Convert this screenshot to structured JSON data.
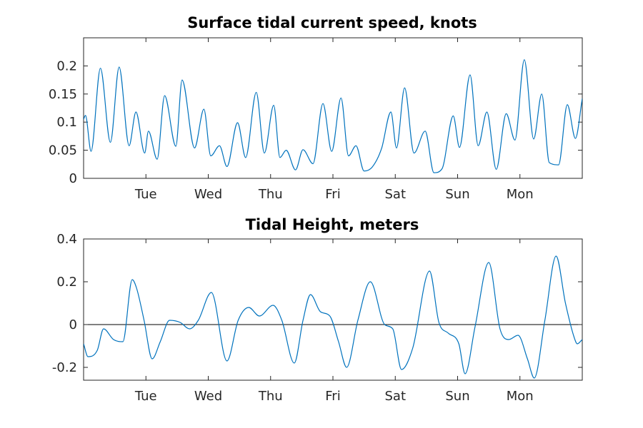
{
  "chart_data": [
    {
      "type": "line",
      "title": "Surface tidal current speed, knots",
      "xlabel": "",
      "ylabel": "",
      "xlim": [
        0,
        8
      ],
      "ylim": [
        0,
        0.25
      ],
      "yticks": [
        0,
        0.05,
        0.1,
        0.15,
        0.2
      ],
      "ytick_labels": [
        "0",
        "0.05",
        "0.1",
        "0.15",
        "0.2"
      ],
      "xticks": [
        1,
        2,
        3,
        4,
        5,
        6,
        7
      ],
      "xtick_labels": [
        "Tue",
        "Wed",
        "Thu",
        "Fri",
        "Sat",
        "Sun",
        "Mon"
      ],
      "zero_line": false,
      "grid": false,
      "series": [
        {
          "color": "#0072bd",
          "x": [
            0.0,
            0.03,
            0.12,
            0.27,
            0.43,
            0.57,
            0.73,
            0.84,
            0.98,
            1.04,
            1.18,
            1.3,
            1.48,
            1.58,
            1.78,
            1.93,
            2.04,
            2.18,
            2.3,
            2.47,
            2.6,
            2.77,
            2.9,
            3.05,
            3.15,
            3.25,
            3.4,
            3.52,
            3.68,
            3.84,
            3.98,
            4.13,
            4.25,
            4.37,
            4.5,
            4.63,
            4.78,
            4.93,
            5.02,
            5.15,
            5.3,
            5.48,
            5.62,
            5.75,
            5.93,
            6.03,
            6.2,
            6.33,
            6.47,
            6.62,
            6.78,
            6.92,
            7.07,
            7.22,
            7.35,
            7.47,
            7.62,
            7.76,
            7.89,
            8.0
          ],
          "y": [
            0.105,
            0.112,
            0.048,
            0.196,
            0.064,
            0.198,
            0.058,
            0.118,
            0.045,
            0.084,
            0.034,
            0.147,
            0.057,
            0.175,
            0.054,
            0.123,
            0.04,
            0.058,
            0.021,
            0.099,
            0.037,
            0.153,
            0.045,
            0.13,
            0.037,
            0.05,
            0.015,
            0.051,
            0.026,
            0.133,
            0.048,
            0.143,
            0.04,
            0.058,
            0.013,
            0.02,
            0.053,
            0.118,
            0.054,
            0.161,
            0.045,
            0.084,
            0.01,
            0.017,
            0.111,
            0.055,
            0.184,
            0.058,
            0.118,
            0.016,
            0.115,
            0.068,
            0.211,
            0.07,
            0.15,
            0.028,
            0.024,
            0.131,
            0.071,
            0.142
          ]
        }
      ]
    },
    {
      "type": "line",
      "title": "Tidal Height, meters",
      "xlabel": "",
      "ylabel": "",
      "xlim": [
        0,
        8
      ],
      "ylim": [
        -0.26,
        0.4
      ],
      "yticks": [
        -0.2,
        0,
        0.2,
        0.4
      ],
      "ytick_labels": [
        "-0.2",
        "0",
        "0.2",
        "0.4"
      ],
      "xticks": [
        1,
        2,
        3,
        4,
        5,
        6,
        7
      ],
      "xtick_labels": [
        "Tue",
        "Wed",
        "Thu",
        "Fri",
        "Sat",
        "Sun",
        "Mon"
      ],
      "zero_line": true,
      "grid": false,
      "series": [
        {
          "color": "#0072bd",
          "x": [
            0.0,
            0.07,
            0.22,
            0.32,
            0.48,
            0.63,
            0.78,
            0.85,
            0.97,
            1.1,
            1.23,
            1.38,
            1.55,
            1.7,
            1.84,
            2.05,
            2.3,
            2.48,
            2.65,
            2.82,
            3.04,
            3.18,
            3.38,
            3.52,
            3.64,
            3.8,
            3.95,
            4.09,
            4.22,
            4.4,
            4.6,
            4.83,
            4.96,
            5.1,
            5.28,
            5.55,
            5.7,
            5.85,
            6.02,
            6.12,
            6.28,
            6.5,
            6.68,
            6.82,
            6.97,
            7.12,
            7.23,
            7.4,
            7.58,
            7.73,
            7.87,
            7.92,
            8.0
          ],
          "y": [
            -0.09,
            -0.15,
            -0.12,
            -0.02,
            -0.07,
            -0.08,
            0.21,
            0.17,
            0.02,
            -0.16,
            -0.08,
            0.02,
            0.01,
            -0.02,
            0.02,
            0.15,
            -0.17,
            0.02,
            0.08,
            0.04,
            0.09,
            0.02,
            -0.18,
            0.02,
            0.14,
            0.06,
            0.04,
            -0.08,
            -0.2,
            0.02,
            0.2,
            0.0,
            -0.02,
            -0.21,
            -0.11,
            0.25,
            0.01,
            -0.04,
            -0.09,
            -0.23,
            -0.01,
            0.29,
            -0.02,
            -0.07,
            -0.05,
            -0.16,
            -0.25,
            0.02,
            0.32,
            0.1,
            -0.06,
            -0.09,
            -0.07
          ]
        }
      ]
    }
  ]
}
